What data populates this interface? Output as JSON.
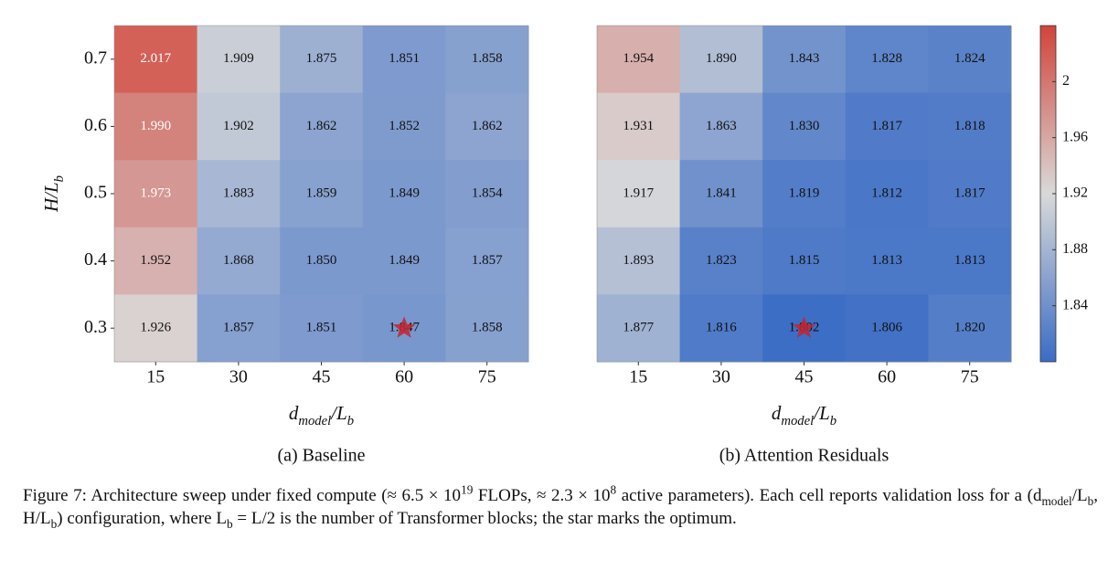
{
  "chart_data": [
    {
      "type": "heatmap",
      "subtitle": "(a) Baseline",
      "x_label": "d_{model}/L_{b}",
      "y_label": "H/L_{b}",
      "x_categories": [
        "15",
        "30",
        "45",
        "60",
        "75"
      ],
      "y_categories": [
        "0.7",
        "0.6",
        "0.5",
        "0.4",
        "0.3"
      ],
      "values": [
        [
          2.017,
          1.909,
          1.875,
          1.851,
          1.858
        ],
        [
          1.99,
          1.902,
          1.862,
          1.852,
          1.862
        ],
        [
          1.973,
          1.883,
          1.859,
          1.849,
          1.854
        ],
        [
          1.952,
          1.868,
          1.85,
          1.849,
          1.857
        ],
        [
          1.926,
          1.857,
          1.851,
          1.847,
          1.858
        ]
      ],
      "value_labels": [
        [
          "2.017",
          "1.909",
          "1.875",
          "1.851",
          "1.858"
        ],
        [
          "1.990",
          "1.902",
          "1.862",
          "1.852",
          "1.862"
        ],
        [
          "1.973",
          "1.883",
          "1.859",
          "1.849",
          "1.854"
        ],
        [
          "1.952",
          "1.868",
          "1.850",
          "1.849",
          "1.857"
        ],
        [
          "1.926",
          "1.857",
          "1.851",
          "1.847",
          "1.858"
        ]
      ],
      "clim": [
        1.8,
        2.04
      ],
      "colormap": [
        "#3a6cc5",
        "#d9d9d9",
        "#d1443a"
      ],
      "mark_optimum": true
    },
    {
      "type": "heatmap",
      "subtitle": "(b) Attention Residuals",
      "x_label": "d_{model}/L_{b}",
      "x_categories": [
        "15",
        "30",
        "45",
        "60",
        "75"
      ],
      "values": [
        [
          1.954,
          1.89,
          1.843,
          1.828,
          1.824
        ],
        [
          1.931,
          1.863,
          1.83,
          1.817,
          1.818
        ],
        [
          1.917,
          1.841,
          1.819,
          1.812,
          1.817
        ],
        [
          1.893,
          1.823,
          1.815,
          1.813,
          1.813
        ],
        [
          1.877,
          1.816,
          1.802,
          1.806,
          1.82
        ]
      ],
      "value_labels": [
        [
          "1.954",
          "1.890",
          "1.843",
          "1.828",
          "1.824"
        ],
        [
          "1.931",
          "1.863",
          "1.830",
          "1.817",
          "1.818"
        ],
        [
          "1.917",
          "1.841",
          "1.819",
          "1.812",
          "1.817"
        ],
        [
          "1.893",
          "1.823",
          "1.815",
          "1.813",
          "1.813"
        ],
        [
          "1.877",
          "1.816",
          "1.802",
          "1.806",
          "1.820"
        ]
      ],
      "clim": [
        1.8,
        2.04
      ],
      "colormap": [
        "#3a6cc5",
        "#d9d9d9",
        "#d1443a"
      ],
      "mark_optimum": true,
      "colorbar_ticks": [
        1.84,
        1.88,
        1.92,
        1.96,
        2
      ]
    }
  ],
  "caption": "Figure 7: Architecture sweep under fixed compute (≈ 6.5 × 10^{19} FLOPs, ≈ 2.3 × 10^{8} active parameters). Each cell reports validation loss for a (d_{model}/L_{b}, H/L_{b}) configuration, where L_{b} = L/2 is the number of Transformer blocks; the star marks the optimum."
}
